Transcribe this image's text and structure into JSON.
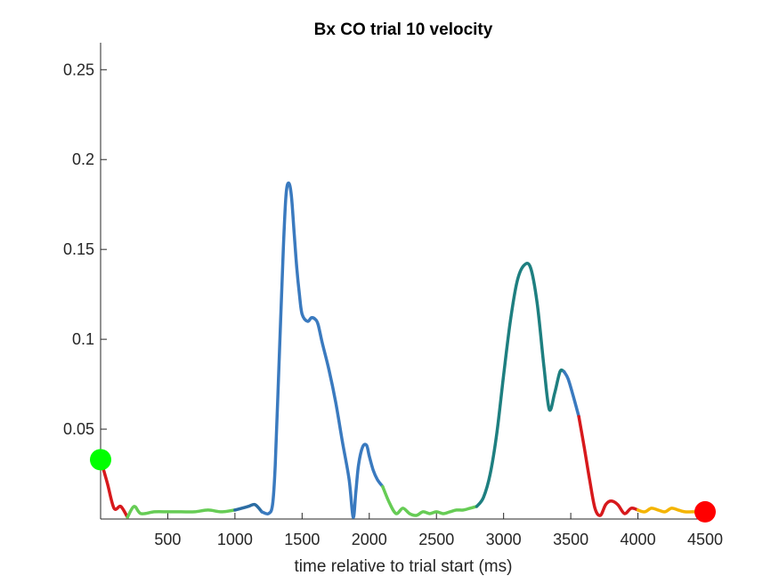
{
  "chart_data": {
    "type": "line",
    "title": "Bx  CO trial 10 velocity",
    "xlabel": "time relative to trial start (ms)",
    "ylabel": "",
    "xlim": [
      0,
      4500
    ],
    "ylim": [
      0,
      0.265
    ],
    "xticks": [
      500,
      1000,
      1500,
      2000,
      2500,
      3000,
      3500,
      4000,
      4500
    ],
    "xtick_labels": [
      "500",
      "1000",
      "1500",
      "2000",
      "2500",
      "3000",
      "3500",
      "4000",
      "4500"
    ],
    "yticks": [
      0.05,
      0.1,
      0.15,
      0.2,
      0.25
    ],
    "ytick_labels": [
      "0.05",
      "0.1",
      "0.15",
      "0.2",
      "0.25"
    ],
    "grid": false,
    "series": [
      {
        "color": "#d7191c",
        "x": [
          0,
          50,
          100,
          150,
          200
        ],
        "y": [
          0.033,
          0.02,
          0.006,
          0.007,
          0.001
        ]
      },
      {
        "color": "#66cc55",
        "x": [
          200,
          250,
          300,
          400,
          500,
          600,
          700,
          800,
          900,
          1000
        ],
        "y": [
          0.001,
          0.007,
          0.003,
          0.004,
          0.004,
          0.004,
          0.004,
          0.005,
          0.004,
          0.005
        ]
      },
      {
        "color": "#2b6ca3",
        "x": [
          1000,
          1050,
          1100,
          1150,
          1200
        ],
        "y": [
          0.005,
          0.006,
          0.007,
          0.008,
          0.004
        ]
      },
      {
        "color": "#3a7abf",
        "x": [
          1200,
          1250,
          1280,
          1300,
          1330,
          1360,
          1380,
          1400,
          1420,
          1440,
          1460,
          1480,
          1500,
          1540,
          1570,
          1600,
          1620,
          1650,
          1700,
          1750,
          1800,
          1850,
          1880,
          1900,
          1920,
          1950,
          1980,
          2000,
          2030,
          2060,
          2100
        ],
        "y": [
          0.004,
          0.003,
          0.008,
          0.03,
          0.09,
          0.15,
          0.18,
          0.187,
          0.18,
          0.16,
          0.14,
          0.125,
          0.114,
          0.11,
          0.112,
          0.111,
          0.108,
          0.098,
          0.083,
          0.065,
          0.043,
          0.022,
          0.001,
          0.015,
          0.03,
          0.04,
          0.041,
          0.035,
          0.027,
          0.022,
          0.018
        ]
      },
      {
        "color": "#66cc55",
        "x": [
          2100,
          2150,
          2200,
          2250,
          2300,
          2350,
          2400,
          2450,
          2500,
          2550,
          2600,
          2650,
          2700,
          2750,
          2800
        ],
        "y": [
          0.018,
          0.009,
          0.003,
          0.006,
          0.003,
          0.002,
          0.004,
          0.003,
          0.004,
          0.003,
          0.004,
          0.005,
          0.005,
          0.006,
          0.007
        ]
      },
      {
        "color": "#1e7f80",
        "x": [
          2800,
          2850,
          2900,
          2950,
          3000,
          3050,
          3100,
          3150,
          3200,
          3250,
          3300,
          3340,
          3380,
          3420,
          3450
        ],
        "y": [
          0.007,
          0.012,
          0.025,
          0.048,
          0.08,
          0.11,
          0.132,
          0.141,
          0.14,
          0.12,
          0.085,
          0.061,
          0.07,
          0.082,
          0.082
        ]
      },
      {
        "color": "#3a7abf",
        "x": [
          3450,
          3480,
          3520,
          3560
        ],
        "y": [
          0.082,
          0.078,
          0.068,
          0.057
        ]
      },
      {
        "color": "#d7191c",
        "x": [
          3560,
          3600,
          3640,
          3680,
          3720,
          3760,
          3800,
          3850,
          3900,
          3950,
          4000
        ],
        "y": [
          0.057,
          0.04,
          0.022,
          0.006,
          0.002,
          0.008,
          0.01,
          0.008,
          0.003,
          0.006,
          0.005
        ]
      },
      {
        "color": "#f4b400",
        "x": [
          4000,
          4050,
          4100,
          4150,
          4200,
          4250,
          4300,
          4350,
          4400,
          4450,
          4500
        ],
        "y": [
          0.005,
          0.004,
          0.006,
          0.005,
          0.004,
          0.006,
          0.005,
          0.004,
          0.004,
          0.004,
          0.004
        ]
      }
    ],
    "markers": [
      {
        "x": 0,
        "y": 0.033,
        "color": "#00ff00"
      },
      {
        "x": 4500,
        "y": 0.004,
        "color": "#ff0000"
      }
    ]
  }
}
